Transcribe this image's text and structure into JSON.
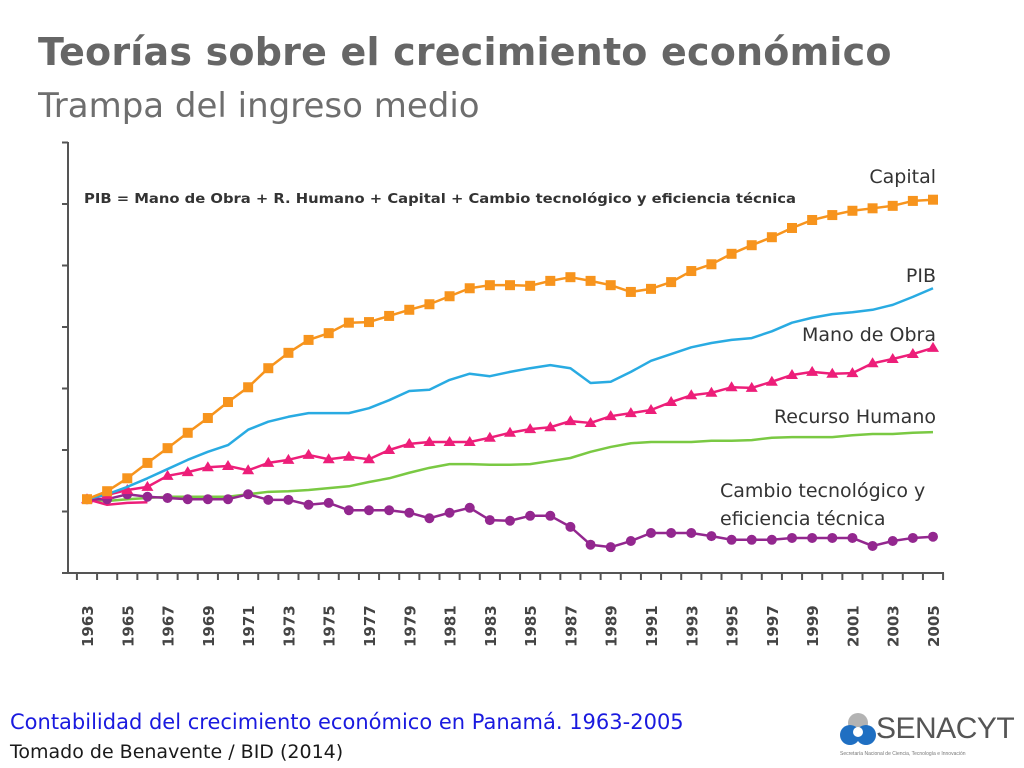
{
  "slide": {
    "title": "Teorías sobre el crecimiento económico",
    "subtitle": "Trampa del ingreso medio",
    "caption": "Contabilidad del crecimiento económico en Panamá. 1963-2005",
    "source": "Tomado de Benavente / BID (2014)",
    "logo": {
      "name": "SENACYT",
      "tagline": "Secretaría Nacional de Ciencia, Tecnología e Innovación",
      "icon": "senacyt-logo-icon"
    }
  },
  "chart_data": {
    "type": "line",
    "title": "",
    "annotation": "PIB = Mano de Obra + R. Humano + Capital + Cambio tecnológico y eficiencia técnica",
    "xlabel": "",
    "ylabel": "",
    "y_units": "gridline units (unlabeled axis; 0 = baseline)",
    "ylim": [
      0,
      7
    ],
    "y_ticks_labeled": false,
    "grid": false,
    "legend": "inline labels at right end of each series",
    "x": [
      1963,
      1964,
      1965,
      1966,
      1967,
      1968,
      1969,
      1970,
      1971,
      1972,
      1973,
      1974,
      1975,
      1976,
      1977,
      1978,
      1979,
      1980,
      1981,
      1982,
      1983,
      1984,
      1985,
      1986,
      1987,
      1988,
      1989,
      1990,
      1991,
      1992,
      1993,
      1994,
      1995,
      1996,
      1997,
      1998,
      1999,
      2000,
      2001,
      2002,
      2003,
      2004,
      2005
    ],
    "x_tick_labels": [
      "1963",
      "1965",
      "1967",
      "1969",
      "1971",
      "1973",
      "1975",
      "1977",
      "1979",
      "1981",
      "1983",
      "1985",
      "1987",
      "1989",
      "1991",
      "1993",
      "1995",
      "1997",
      "1999",
      "2001",
      "2003",
      "2005"
    ],
    "series": [
      {
        "name": "Capital",
        "label": "Capital",
        "color": "#f7941d",
        "marker": "square",
        "values": [
          1.2,
          1.33,
          1.54,
          1.79,
          2.03,
          2.28,
          2.52,
          2.78,
          3.02,
          3.33,
          3.58,
          3.79,
          3.9,
          4.07,
          4.08,
          4.18,
          4.28,
          4.37,
          4.5,
          4.63,
          4.68,
          4.68,
          4.67,
          4.75,
          4.81,
          4.75,
          4.68,
          4.57,
          4.62,
          4.73,
          4.91,
          5.02,
          5.19,
          5.33,
          5.46,
          5.61,
          5.74,
          5.82,
          5.89,
          5.93,
          5.97,
          6.05,
          6.07
        ]
      },
      {
        "name": "PIB",
        "label": "PIB",
        "color": "#29abe2",
        "marker": "none",
        "values": [
          1.2,
          1.28,
          1.4,
          1.54,
          1.69,
          1.84,
          1.97,
          2.08,
          2.33,
          2.46,
          2.54,
          2.6,
          2.6,
          2.6,
          2.68,
          2.81,
          2.96,
          2.98,
          3.14,
          3.24,
          3.2,
          3.27,
          3.33,
          3.38,
          3.33,
          3.09,
          3.11,
          3.27,
          3.45,
          3.56,
          3.67,
          3.74,
          3.79,
          3.82,
          3.93,
          4.07,
          4.15,
          4.21,
          4.24,
          4.28,
          4.36,
          4.49,
          4.63
        ]
      },
      {
        "name": "Mano de Obra",
        "label": "Mano de Obra",
        "color": "#ed1e79",
        "marker": "triangle",
        "values": [
          1.2,
          1.27,
          1.35,
          1.4,
          1.58,
          1.64,
          1.72,
          1.74,
          1.67,
          1.79,
          1.84,
          1.92,
          1.85,
          1.89,
          1.85,
          2.0,
          2.1,
          2.13,
          2.13,
          2.13,
          2.2,
          2.28,
          2.34,
          2.37,
          2.47,
          2.44,
          2.55,
          2.6,
          2.65,
          2.78,
          2.89,
          2.93,
          3.02,
          3.01,
          3.11,
          3.22,
          3.27,
          3.24,
          3.25,
          3.41,
          3.48,
          3.56,
          3.66
        ]
      },
      {
        "name": "Recurso Humano",
        "label": "Recurso Humano",
        "color": "#7ac943",
        "marker": "none",
        "values": [
          1.2,
          1.17,
          1.2,
          1.22,
          1.24,
          1.24,
          1.24,
          1.24,
          1.28,
          1.32,
          1.33,
          1.35,
          1.38,
          1.41,
          1.48,
          1.54,
          1.63,
          1.71,
          1.77,
          1.77,
          1.76,
          1.76,
          1.77,
          1.82,
          1.87,
          1.97,
          2.05,
          2.11,
          2.13,
          2.13,
          2.13,
          2.15,
          2.15,
          2.16,
          2.2,
          2.21,
          2.21,
          2.21,
          2.24,
          2.26,
          2.26,
          2.28,
          2.29
        ]
      },
      {
        "name": "Cambio tecnológico y eficiencia técnica",
        "label_lines": [
          "Cambio tecnológico y",
          "eficiencia técnica"
        ],
        "color": "#93278f",
        "marker": "circle",
        "values": [
          1.2,
          1.2,
          1.28,
          1.24,
          1.22,
          1.2,
          1.2,
          1.2,
          1.28,
          1.19,
          1.19,
          1.11,
          1.14,
          1.02,
          1.02,
          1.02,
          0.98,
          0.89,
          0.98,
          1.06,
          0.86,
          0.85,
          0.93,
          0.93,
          0.75,
          0.46,
          0.42,
          0.52,
          0.65,
          0.65,
          0.65,
          0.6,
          0.54,
          0.54,
          0.54,
          0.57,
          0.57,
          0.57,
          0.57,
          0.44,
          0.52,
          0.57,
          0.59
        ]
      }
    ],
    "extra_segment": {
      "name": "pink-stub",
      "color": "#ed1e79",
      "x": [
        1963,
        1964,
        1965,
        1966
      ],
      "values": [
        1.2,
        1.11,
        1.14,
        1.15
      ]
    }
  }
}
